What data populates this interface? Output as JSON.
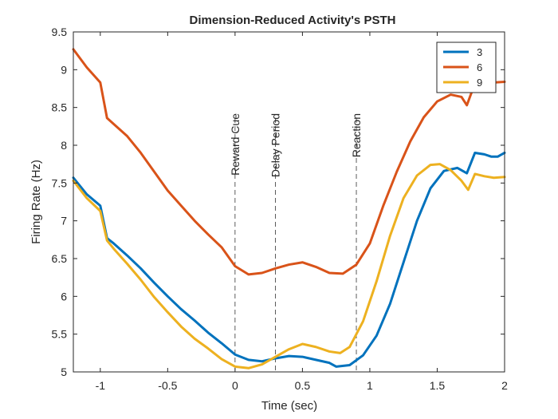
{
  "chart_data": {
    "type": "line",
    "title": "Dimension-Reduced Activity's PSTH",
    "xlabel": "Time (sec)",
    "ylabel": "Firing Rate (Hz)",
    "xlim": [
      -1.2,
      2
    ],
    "ylim": [
      5,
      9.5
    ],
    "xticks": [
      -1,
      -0.5,
      0,
      0.5,
      1,
      1.5,
      2
    ],
    "xtick_labels": [
      "-1",
      "-0.5",
      "0",
      "0.5",
      "1",
      "1.5",
      "2"
    ],
    "yticks": [
      5,
      5.5,
      6,
      6.5,
      7,
      7.5,
      8,
      8.5,
      9,
      9.5
    ],
    "ytick_labels": [
      "5",
      "5.5",
      "6",
      "6.5",
      "7",
      "7.5",
      "8",
      "8.5",
      "9",
      "9.5"
    ],
    "grid": false,
    "legend_position": "top-right",
    "events": [
      {
        "label": "Reward Cue",
        "x": 0
      },
      {
        "label": "Delay Period",
        "x": 0.3
      },
      {
        "label": "Reaction",
        "x": 0.9
      }
    ],
    "series": [
      {
        "name": "3",
        "color": "#0072BD",
        "points": [
          [
            -1.2,
            7.57
          ],
          [
            -1.1,
            7.35
          ],
          [
            -1.0,
            7.2
          ],
          [
            -0.95,
            6.77
          ],
          [
            -0.9,
            6.7
          ],
          [
            -0.8,
            6.54
          ],
          [
            -0.7,
            6.37
          ],
          [
            -0.6,
            6.18
          ],
          [
            -0.5,
            6.0
          ],
          [
            -0.4,
            5.83
          ],
          [
            -0.3,
            5.68
          ],
          [
            -0.2,
            5.52
          ],
          [
            -0.1,
            5.38
          ],
          [
            0.0,
            5.23
          ],
          [
            0.1,
            5.16
          ],
          [
            0.2,
            5.14
          ],
          [
            0.3,
            5.18
          ],
          [
            0.4,
            5.21
          ],
          [
            0.5,
            5.2
          ],
          [
            0.6,
            5.16
          ],
          [
            0.7,
            5.12
          ],
          [
            0.75,
            5.07
          ],
          [
            0.85,
            5.09
          ],
          [
            0.95,
            5.22
          ],
          [
            1.05,
            5.48
          ],
          [
            1.15,
            5.9
          ],
          [
            1.25,
            6.45
          ],
          [
            1.35,
            7.0
          ],
          [
            1.45,
            7.43
          ],
          [
            1.55,
            7.66
          ],
          [
            1.65,
            7.7
          ],
          [
            1.72,
            7.63
          ],
          [
            1.78,
            7.9
          ],
          [
            1.85,
            7.88
          ],
          [
            1.9,
            7.85
          ],
          [
            1.95,
            7.85
          ],
          [
            2.0,
            7.9
          ]
        ]
      },
      {
        "name": "6",
        "color": "#D95319",
        "points": [
          [
            -1.2,
            9.27
          ],
          [
            -1.1,
            9.03
          ],
          [
            -1.0,
            8.83
          ],
          [
            -0.95,
            8.36
          ],
          [
            -0.9,
            8.28
          ],
          [
            -0.8,
            8.12
          ],
          [
            -0.7,
            7.9
          ],
          [
            -0.6,
            7.65
          ],
          [
            -0.5,
            7.4
          ],
          [
            -0.4,
            7.2
          ],
          [
            -0.3,
            7.0
          ],
          [
            -0.2,
            6.82
          ],
          [
            -0.1,
            6.65
          ],
          [
            0.0,
            6.4
          ],
          [
            0.1,
            6.29
          ],
          [
            0.2,
            6.31
          ],
          [
            0.3,
            6.37
          ],
          [
            0.4,
            6.42
          ],
          [
            0.5,
            6.45
          ],
          [
            0.6,
            6.39
          ],
          [
            0.7,
            6.31
          ],
          [
            0.8,
            6.3
          ],
          [
            0.9,
            6.42
          ],
          [
            1.0,
            6.7
          ],
          [
            1.1,
            7.2
          ],
          [
            1.2,
            7.65
          ],
          [
            1.3,
            8.05
          ],
          [
            1.4,
            8.37
          ],
          [
            1.5,
            8.58
          ],
          [
            1.6,
            8.67
          ],
          [
            1.68,
            8.64
          ],
          [
            1.72,
            8.53
          ],
          [
            1.78,
            8.82
          ],
          [
            1.85,
            8.84
          ],
          [
            1.92,
            8.83
          ],
          [
            2.0,
            8.84
          ]
        ]
      },
      {
        "name": "9",
        "color": "#EDB120",
        "points": [
          [
            -1.2,
            7.53
          ],
          [
            -1.1,
            7.3
          ],
          [
            -1.0,
            7.13
          ],
          [
            -0.95,
            6.74
          ],
          [
            -0.9,
            6.63
          ],
          [
            -0.8,
            6.43
          ],
          [
            -0.7,
            6.22
          ],
          [
            -0.6,
            5.99
          ],
          [
            -0.5,
            5.79
          ],
          [
            -0.4,
            5.6
          ],
          [
            -0.3,
            5.44
          ],
          [
            -0.2,
            5.31
          ],
          [
            -0.1,
            5.17
          ],
          [
            0.0,
            5.07
          ],
          [
            0.1,
            5.05
          ],
          [
            0.2,
            5.1
          ],
          [
            0.3,
            5.2
          ],
          [
            0.4,
            5.3
          ],
          [
            0.5,
            5.37
          ],
          [
            0.6,
            5.33
          ],
          [
            0.7,
            5.27
          ],
          [
            0.78,
            5.25
          ],
          [
            0.85,
            5.33
          ],
          [
            0.95,
            5.67
          ],
          [
            1.05,
            6.2
          ],
          [
            1.15,
            6.8
          ],
          [
            1.25,
            7.3
          ],
          [
            1.35,
            7.6
          ],
          [
            1.45,
            7.74
          ],
          [
            1.52,
            7.75
          ],
          [
            1.6,
            7.67
          ],
          [
            1.68,
            7.53
          ],
          [
            1.73,
            7.41
          ],
          [
            1.78,
            7.62
          ],
          [
            1.85,
            7.59
          ],
          [
            1.92,
            7.57
          ],
          [
            2.0,
            7.58
          ]
        ]
      }
    ]
  }
}
